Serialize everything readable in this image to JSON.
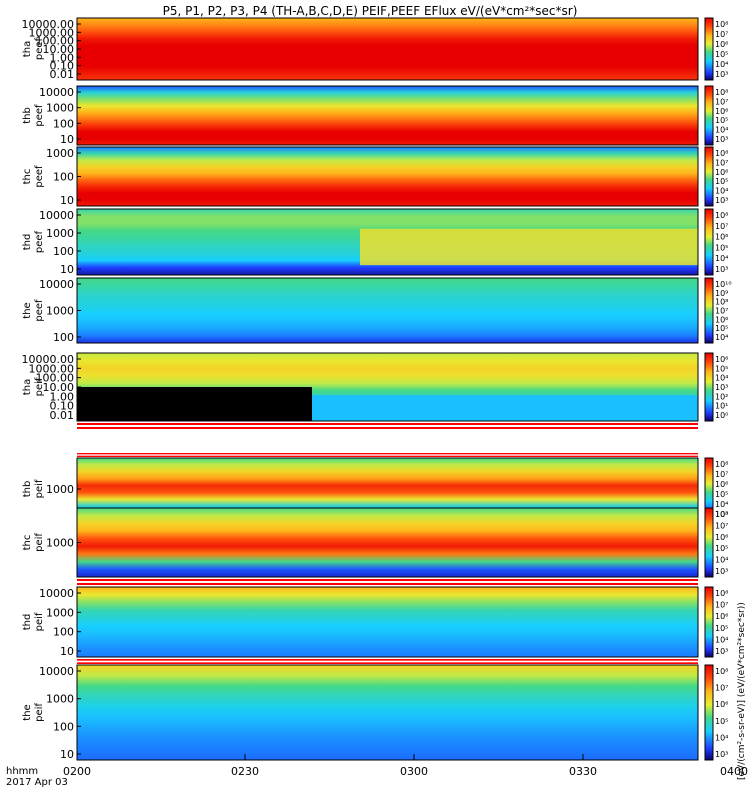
{
  "title": "P5, P1, P2, P3, P4 (TH-A,B,C,D,E) PEIF,PEEF EFlux eV/(eV*cm²*sec*sr)",
  "colorbar_label": "[eV/(cm²-s-sr-eV)] (eV/(eV*cm²*sec*sr))",
  "time_axis": {
    "label_lines": [
      "hhmm",
      "2017 Apr 03"
    ],
    "ticks": [
      "0200",
      "0230",
      "0300",
      "0330",
      "0400"
    ]
  },
  "chart_data": [
    {
      "type": "heatmap",
      "panel": "tha peef",
      "ylabel": [
        "tha",
        "peef"
      ],
      "yscale": "log",
      "yticks": [
        "10000.00",
        "1000.00",
        "100.00",
        "10.00",
        "1.00",
        "0.10",
        "0.01"
      ],
      "colorbar_ticks": [
        "10⁸",
        "10⁷",
        "10⁶",
        "10⁵",
        "10⁴",
        "10³"
      ]
    },
    {
      "type": "heatmap",
      "panel": "thb peef",
      "ylabel": [
        "thb",
        "peef"
      ],
      "yscale": "log",
      "yticks": [
        "10000",
        "1000",
        "100",
        "10"
      ],
      "colorbar_ticks": [
        "10⁸",
        "10⁷",
        "10⁶",
        "10⁵",
        "10⁴",
        "10³"
      ]
    },
    {
      "type": "heatmap",
      "panel": "thc peef",
      "ylabel": [
        "thc",
        "peef"
      ],
      "yscale": "log",
      "yticks": [
        "1000",
        "100",
        "10"
      ],
      "colorbar_ticks": [
        "10⁸",
        "10⁷",
        "10⁶",
        "10⁵",
        "10⁴",
        "10³"
      ]
    },
    {
      "type": "heatmap",
      "panel": "thd peef",
      "ylabel": [
        "thd",
        "peef"
      ],
      "yscale": "log",
      "yticks": [
        "10000",
        "1000",
        "100",
        "10"
      ],
      "colorbar_ticks": [
        "10⁸",
        "10⁷",
        "10⁶",
        "10⁵",
        "10⁴",
        "10³"
      ]
    },
    {
      "type": "heatmap",
      "panel": "the peef",
      "ylabel": [
        "the",
        "peef"
      ],
      "yscale": "log",
      "yticks": [
        "10000",
        "1000",
        "100"
      ],
      "colorbar_ticks": [
        "10¹⁰",
        "10⁹",
        "10⁸",
        "10⁷",
        "10⁶",
        "10⁵",
        "10⁴"
      ]
    },
    {
      "type": "heatmap",
      "panel": "tha peif",
      "ylabel": [
        "tha",
        "peif"
      ],
      "yscale": "log",
      "yticks": [
        "10000.00",
        "1000.00",
        "100.00",
        "10.00",
        "1.00",
        "0.10",
        "0.01"
      ],
      "colorbar_ticks": [
        "10⁶",
        "10⁵",
        "10⁴",
        "10³",
        "10²",
        "10¹",
        "10⁰"
      ]
    },
    {
      "type": "heatmap",
      "panel": "thb peif",
      "ylabel": [
        "thb",
        "peif"
      ],
      "yscale": "log",
      "yticks": [
        "1000"
      ],
      "colorbar_ticks": [
        "10⁸",
        "10⁷",
        "10⁶",
        "10⁵",
        "10⁴",
        "10³"
      ]
    },
    {
      "type": "heatmap",
      "panel": "thc peif",
      "ylabel": [
        "thc",
        "peif"
      ],
      "yscale": "log",
      "yticks": [
        "1000"
      ],
      "colorbar_ticks": [
        "10⁸",
        "10⁷",
        "10⁶",
        "10⁵",
        "10⁴",
        "10³"
      ]
    },
    {
      "type": "heatmap",
      "panel": "thd peif",
      "ylabel": [
        "thd",
        "peif"
      ],
      "yscale": "log",
      "yticks": [
        "10000",
        "1000",
        "100",
        "10"
      ],
      "colorbar_ticks": [
        "10⁸",
        "10⁷",
        "10⁶",
        "10⁵",
        "10⁴",
        "10³"
      ]
    },
    {
      "type": "heatmap",
      "panel": "the peif",
      "ylabel": [
        "the",
        "peif"
      ],
      "yscale": "log",
      "yticks": [
        "10000",
        "1000",
        "100",
        "10"
      ],
      "colorbar_ticks": [
        "10⁸",
        "10⁷",
        "10⁶",
        "10⁵",
        "10⁴",
        "10³"
      ]
    }
  ]
}
